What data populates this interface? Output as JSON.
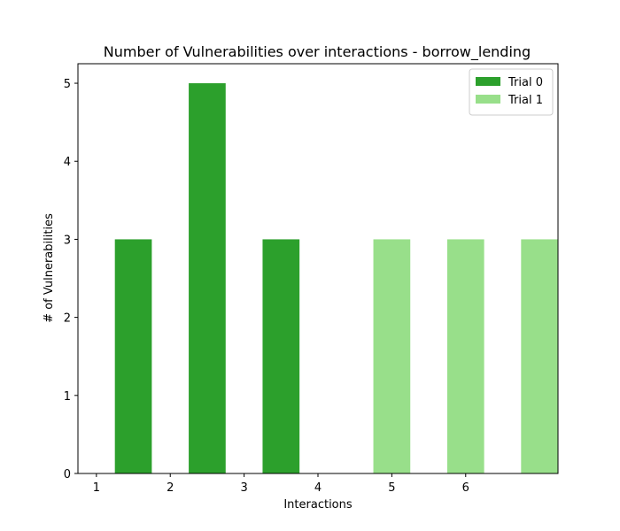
{
  "chart_data": {
    "type": "bar",
    "title": "Number of Vulnerabilities over interactions - borrow_lending",
    "xlabel": "Interactions",
    "ylabel": "# of Vulnerabilities",
    "xlim": [
      0.75,
      7.25
    ],
    "ylim": [
      0,
      5.25
    ],
    "x_ticks": [
      1,
      2,
      3,
      4,
      5,
      6
    ],
    "y_ticks": [
      0,
      1,
      2,
      3,
      4,
      5
    ],
    "grid": false,
    "legend_position": "upper right",
    "bar_width": 0.5,
    "series": [
      {
        "name": "Trial 0",
        "color": "#2ca02c",
        "bars": [
          {
            "x": 1.5,
            "value": 3
          },
          {
            "x": 2.5,
            "value": 5
          },
          {
            "x": 3.5,
            "value": 3
          }
        ]
      },
      {
        "name": "Trial 1",
        "color": "#98df8a",
        "bars": [
          {
            "x": 5.0,
            "value": 3
          },
          {
            "x": 6.0,
            "value": 3
          },
          {
            "x": 7.0,
            "value": 3
          }
        ]
      }
    ]
  }
}
